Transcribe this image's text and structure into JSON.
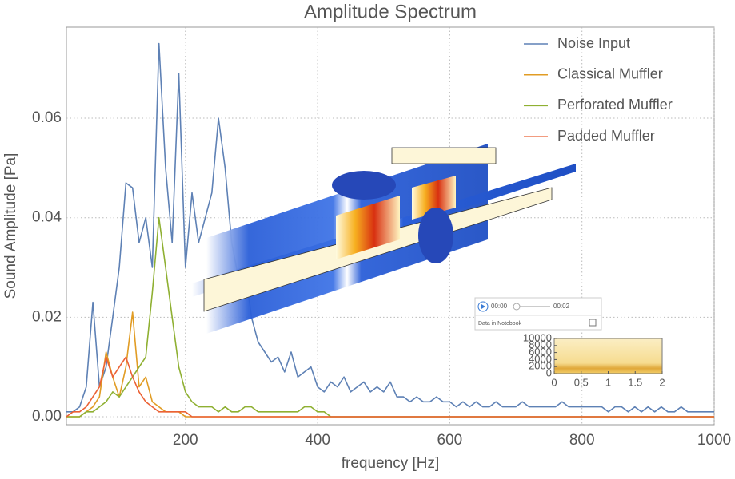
{
  "chart_data": [
    {
      "type": "line",
      "title": "Amplitude Spectrum",
      "xlabel": "frequency [Hz]",
      "ylabel": "Sound Amplitude [Pa]",
      "xlim": [
        20,
        1000
      ],
      "ylim": [
        -0.0016,
        0.0783
      ],
      "xticks": [
        200,
        400,
        600,
        800,
        1000
      ],
      "yticks": [
        {
          "value": 0,
          "label": "0.00"
        },
        {
          "value": 0.02,
          "label": "0.02"
        },
        {
          "value": 0.04,
          "label": "0.04"
        },
        {
          "value": 0.06,
          "label": "0.06"
        }
      ],
      "grid": true,
      "legend": "top-right",
      "x": [
        20,
        30,
        40,
        50,
        60,
        70,
        80,
        90,
        100,
        110,
        120,
        130,
        140,
        150,
        160,
        170,
        180,
        190,
        200,
        210,
        220,
        230,
        240,
        250,
        260,
        270,
        280,
        290,
        300,
        310,
        320,
        330,
        340,
        350,
        360,
        370,
        380,
        390,
        400,
        410,
        420,
        430,
        440,
        450,
        460,
        470,
        480,
        490,
        500,
        510,
        520,
        530,
        540,
        550,
        560,
        570,
        580,
        590,
        600,
        610,
        620,
        630,
        640,
        650,
        660,
        670,
        680,
        690,
        700,
        710,
        720,
        730,
        740,
        750,
        760,
        770,
        780,
        790,
        800,
        810,
        820,
        830,
        840,
        850,
        860,
        870,
        880,
        890,
        900,
        910,
        920,
        930,
        940,
        950,
        960,
        970,
        980,
        990,
        1000
      ],
      "series": [
        {
          "name": "Noise Input",
          "color": "#5e81b5",
          "values": [
            0.001,
            0.001,
            0.002,
            0.006,
            0.023,
            0.006,
            0.01,
            0.02,
            0.03,
            0.047,
            0.046,
            0.035,
            0.04,
            0.03,
            0.075,
            0.05,
            0.035,
            0.069,
            0.03,
            0.045,
            0.035,
            0.04,
            0.045,
            0.06,
            0.05,
            0.035,
            0.028,
            0.03,
            0.02,
            0.015,
            0.013,
            0.011,
            0.012,
            0.009,
            0.013,
            0.008,
            0.009,
            0.01,
            0.006,
            0.005,
            0.007,
            0.006,
            0.008,
            0.005,
            0.006,
            0.007,
            0.005,
            0.006,
            0.005,
            0.007,
            0.004,
            0.004,
            0.003,
            0.004,
            0.003,
            0.003,
            0.004,
            0.003,
            0.003,
            0.002,
            0.003,
            0.002,
            0.003,
            0.002,
            0.002,
            0.003,
            0.002,
            0.002,
            0.002,
            0.003,
            0.002,
            0.002,
            0.002,
            0.002,
            0.002,
            0.003,
            0.002,
            0.002,
            0.002,
            0.002,
            0.002,
            0.002,
            0.001,
            0.002,
            0.002,
            0.001,
            0.002,
            0.001,
            0.002,
            0.001,
            0.002,
            0.001,
            0.001,
            0.002,
            0.001,
            0.001,
            0.001,
            0.001,
            0.001
          ]
        },
        {
          "name": "Classical Muffler",
          "color": "#e19c24",
          "values": [
            0,
            0,
            0,
            0.001,
            0.002,
            0.004,
            0.013,
            0.008,
            0.004,
            0.01,
            0.021,
            0.006,
            0.008,
            0.003,
            0.002,
            0.001,
            0.001,
            0.001,
            0,
            0,
            0,
            0,
            0,
            0,
            0,
            0,
            0,
            0,
            0,
            0,
            0,
            0,
            0,
            0,
            0,
            0,
            0,
            0,
            0,
            0,
            0,
            0,
            0,
            0,
            0,
            0,
            0,
            0,
            0,
            0,
            0,
            0,
            0,
            0,
            0,
            0,
            0,
            0,
            0,
            0,
            0,
            0,
            0,
            0,
            0,
            0,
            0,
            0,
            0,
            0,
            0,
            0,
            0,
            0,
            0,
            0,
            0,
            0,
            0,
            0,
            0,
            0,
            0,
            0,
            0,
            0,
            0,
            0,
            0,
            0,
            0,
            0,
            0,
            0,
            0,
            0,
            0,
            0,
            0
          ]
        },
        {
          "name": "Perforated Muffler",
          "color": "#8fb032",
          "values": [
            0,
            0,
            0,
            0.001,
            0.001,
            0.002,
            0.003,
            0.005,
            0.004,
            0.006,
            0.008,
            0.01,
            0.012,
            0.025,
            0.04,
            0.03,
            0.02,
            0.01,
            0.005,
            0.003,
            0.002,
            0.002,
            0.002,
            0.001,
            0.002,
            0.001,
            0.001,
            0.002,
            0.002,
            0.001,
            0.001,
            0.001,
            0.001,
            0.001,
            0.001,
            0.001,
            0.002,
            0.002,
            0.001,
            0.001,
            0,
            0,
            0,
            0,
            0,
            0,
            0,
            0,
            0,
            0,
            0,
            0,
            0,
            0,
            0,
            0,
            0,
            0,
            0,
            0,
            0,
            0,
            0,
            0,
            0,
            0,
            0,
            0,
            0,
            0,
            0,
            0,
            0,
            0,
            0,
            0,
            0,
            0,
            0,
            0,
            0,
            0,
            0,
            0,
            0,
            0,
            0,
            0,
            0,
            0,
            0,
            0,
            0,
            0,
            0,
            0,
            0,
            0,
            0
          ]
        },
        {
          "name": "Padded Muffler",
          "color": "#eb6235",
          "values": [
            0,
            0.001,
            0.001,
            0.002,
            0.004,
            0.006,
            0.012,
            0.008,
            0.01,
            0.012,
            0.008,
            0.005,
            0.003,
            0.002,
            0.001,
            0.001,
            0.001,
            0.001,
            0.001,
            0,
            0,
            0,
            0,
            0,
            0,
            0,
            0,
            0,
            0,
            0,
            0,
            0,
            0,
            0,
            0,
            0,
            0,
            0,
            0,
            0,
            0,
            0,
            0,
            0,
            0,
            0,
            0,
            0,
            0,
            0,
            0,
            0,
            0,
            0,
            0,
            0,
            0,
            0,
            0,
            0,
            0,
            0,
            0,
            0,
            0,
            0,
            0,
            0,
            0,
            0,
            0,
            0,
            0,
            0,
            0,
            0,
            0,
            0,
            0,
            0,
            0,
            0,
            0,
            0,
            0,
            0,
            0,
            0,
            0,
            0,
            0,
            0,
            0,
            0,
            0,
            0,
            0,
            0,
            0
          ]
        }
      ]
    },
    {
      "type": "heatmap",
      "xlim": [
        0,
        2
      ],
      "ylim": [
        0,
        10000
      ],
      "xticks": [
        0,
        0.5,
        1,
        1.5,
        2
      ],
      "yticks": [
        0,
        2000,
        4000,
        6000,
        8000,
        10000
      ]
    }
  ],
  "player": {
    "current": "00:00",
    "duration": "00:02",
    "caption": "Data in Notebook"
  }
}
